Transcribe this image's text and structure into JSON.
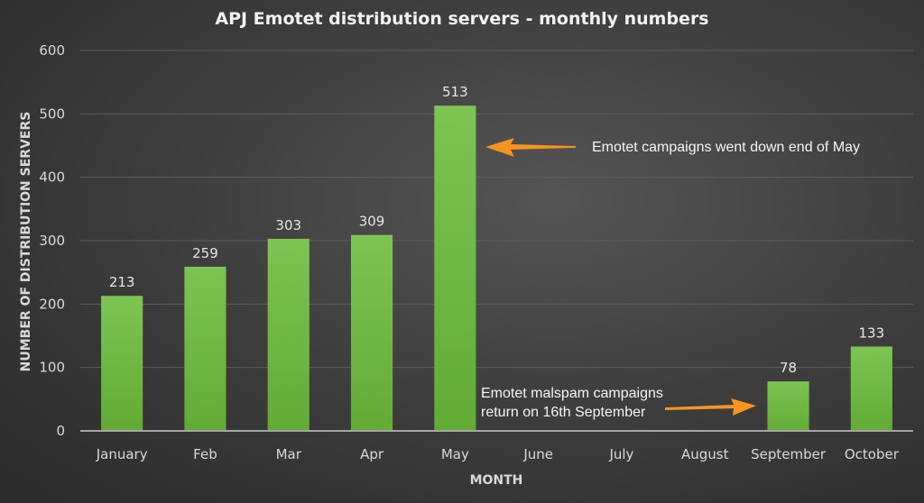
{
  "chart_data": {
    "type": "bar",
    "title": "APJ Emotet distribution servers - monthly numbers",
    "xlabel": "MONTH",
    "ylabel": "NUMBER OF DISTRIBUTION SERVERS",
    "categories": [
      "January",
      "Feb",
      "Mar",
      "Apr",
      "May",
      "June",
      "July",
      "August",
      "September",
      "October"
    ],
    "values": [
      213,
      259,
      303,
      309,
      513,
      null,
      null,
      null,
      78,
      133
    ],
    "data_labels": [
      "213",
      "259",
      "303",
      "309",
      "513",
      "",
      "",
      "",
      "78",
      "133"
    ],
    "ylim": [
      0,
      600
    ],
    "yticks": [
      0,
      100,
      200,
      300,
      400,
      500,
      600
    ],
    "ytick_labels": [
      "0",
      "100",
      "200",
      "300",
      "400",
      "500",
      "600"
    ],
    "grid": true,
    "legend": null,
    "colors": {
      "bar": "#6cb33f",
      "bar_light": "#7cc250",
      "arrow": "#f7941d",
      "text": "#d9d9d9"
    },
    "annotations": [
      {
        "text": [
          "Emotet campaigns went down end of May"
        ],
        "points_to": "May",
        "arrow_direction": "left"
      },
      {
        "text": [
          "Emotet malspam campaigns",
          "return on 16th September"
        ],
        "points_to": "September",
        "arrow_direction": "right"
      }
    ]
  }
}
